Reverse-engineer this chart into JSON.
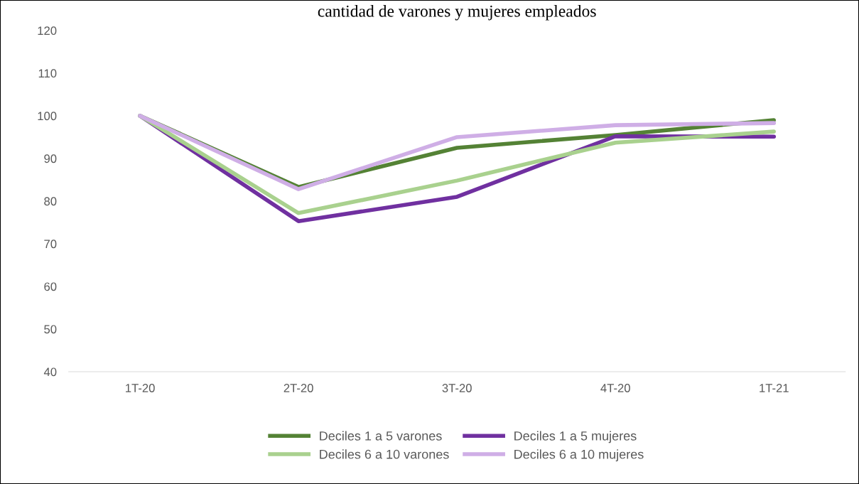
{
  "chart_data": {
    "type": "line",
    "title": "cantidad de varones y mujeres empleados",
    "categories": [
      "1T-20",
      "2T-20",
      "3T-20",
      "4T-20",
      "1T-21"
    ],
    "series": [
      {
        "name": "Deciles 1 a 5 varones",
        "color": "#548235",
        "values": [
          100,
          83.3,
          92.5,
          95.5,
          99
        ]
      },
      {
        "name": "Deciles 1 a 5 mujeres",
        "color": "#7030a0",
        "values": [
          100,
          75.3,
          81,
          95.2,
          95.1
        ]
      },
      {
        "name": "Deciles 6 a 10 varones",
        "color": "#a9d18e",
        "values": [
          100,
          77.2,
          84.8,
          93.7,
          96.3
        ]
      },
      {
        "name": "Deciles 6 a 10 mujeres",
        "color": "#cfaee6",
        "values": [
          100,
          82.8,
          95,
          97.8,
          98.3
        ]
      }
    ],
    "ylim": [
      40,
      120
    ],
    "yticks": [
      40,
      50,
      60,
      70,
      80,
      90,
      100,
      110,
      120
    ],
    "grid": false,
    "legend": "bottom",
    "marker": "none",
    "line_style": "solid"
  }
}
